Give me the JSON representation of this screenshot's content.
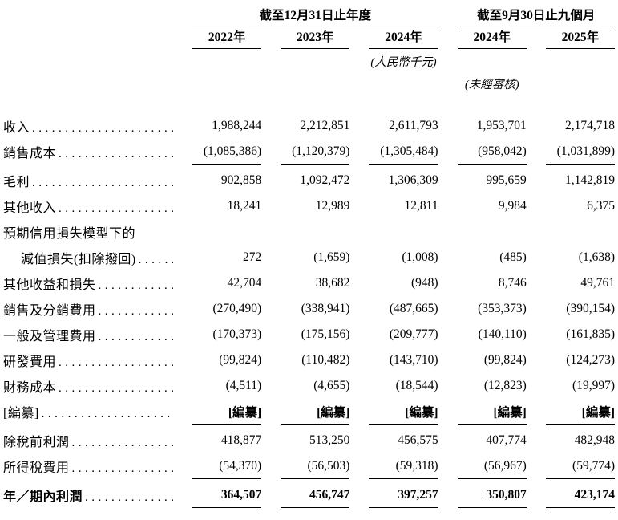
{
  "page": {
    "background": "#ffffff",
    "text_color": "#000000",
    "rule_color": "#000000"
  },
  "table": {
    "col_groups": [
      {
        "label": "截至12月31日止年度",
        "span": 3
      },
      {
        "label": "截至9月30日止九個月",
        "span": 2
      }
    ],
    "columns": [
      "2022年",
      "2023年",
      "2024年",
      "2024年",
      "2025年"
    ],
    "unit_note": "(人民幣千元)",
    "unaudited_note": "(未經審核)",
    "rows": [
      {
        "label": "收入",
        "dots": true,
        "values": [
          "1,988,244",
          "2,212,851",
          "2,611,793",
          "1,953,701",
          "2,174,718"
        ]
      },
      {
        "label": "銷售成本",
        "dots": true,
        "rule_below": true,
        "values": [
          "(1,085,386)",
          "(1,120,379)",
          "(1,305,484)",
          "(958,042)",
          "(1,031,899)"
        ]
      },
      {
        "label": "毛利",
        "dots": true,
        "gap_above": true,
        "values": [
          "902,858",
          "1,092,472",
          "1,306,309",
          "995,659",
          "1,142,819"
        ]
      },
      {
        "label": "其他收入",
        "dots": true,
        "values": [
          "18,241",
          "12,989",
          "12,811",
          "9,984",
          "6,375"
        ]
      },
      {
        "label": "預期信用損失模型下的",
        "dots": false,
        "values": [
          "",
          "",
          "",
          "",
          ""
        ]
      },
      {
        "label": "減值損失(扣除撥回)",
        "indent": true,
        "dots": true,
        "values": [
          "272",
          "(1,659)",
          "(1,008)",
          "(485)",
          "(1,638)"
        ]
      },
      {
        "label": "其他收益和損失",
        "dots": true,
        "values": [
          "42,704",
          "38,682",
          "(948)",
          "8,746",
          "49,761"
        ]
      },
      {
        "label": "銷售及分銷費用",
        "dots": true,
        "values": [
          "(270,490)",
          "(338,941)",
          "(487,665)",
          "(353,373)",
          "(390,154)"
        ]
      },
      {
        "label": "一般及管理費用",
        "dots": true,
        "values": [
          "(170,373)",
          "(175,156)",
          "(209,777)",
          "(140,110)",
          "(161,835)"
        ]
      },
      {
        "label": "研發費用",
        "dots": true,
        "values": [
          "(99,824)",
          "(110,482)",
          "(143,710)",
          "(99,824)",
          "(124,273)"
        ]
      },
      {
        "label": "財務成本",
        "dots": true,
        "values": [
          "(4,511)",
          "(4,655)",
          "(18,544)",
          "(12,823)",
          "(19,997)"
        ]
      },
      {
        "label": "[編纂]",
        "dots": true,
        "bold_values": true,
        "rule_below": true,
        "values": [
          "[編纂]",
          "[編纂]",
          "[編纂]",
          "[編纂]",
          "[編纂]"
        ]
      },
      {
        "label": "除稅前利潤",
        "dots": true,
        "gap_above": true,
        "values": [
          "418,877",
          "513,250",
          "456,575",
          "407,774",
          "482,948"
        ]
      },
      {
        "label": "所得稅費用",
        "dots": true,
        "rule_below": true,
        "values": [
          "(54,370)",
          "(56,503)",
          "(59,318)",
          "(56,967)",
          "(59,774)"
        ]
      },
      {
        "label": "年／期內利潤",
        "dots": true,
        "bold": true,
        "gap_above": true,
        "rule_below": true,
        "values": [
          "364,507",
          "456,747",
          "397,257",
          "350,807",
          "423,174"
        ]
      }
    ]
  }
}
